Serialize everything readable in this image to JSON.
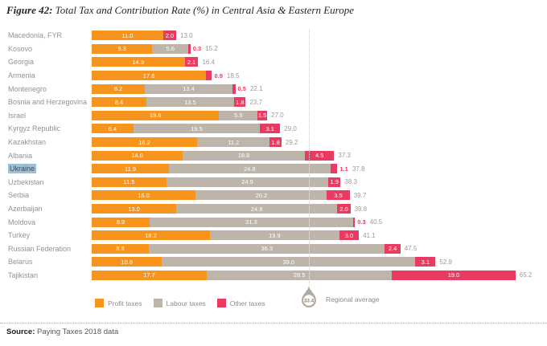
{
  "title": {
    "prefix": "Figure 42:",
    "rest": " Total Tax and Contribution Rate (%) in Central Asia & Eastern Europe"
  },
  "source": {
    "label": "Source:",
    "text": " Paying Taxes 2018 data"
  },
  "regional_average": {
    "value": "33.4",
    "label": "Regional average"
  },
  "legend": [
    {
      "label": "Profit taxes",
      "color_key": "profit"
    },
    {
      "label": "Labour taxes",
      "color_key": "labour"
    },
    {
      "label": "Other taxes",
      "color_key": "other"
    }
  ],
  "colors": {
    "profit": "#f7941e",
    "labour": "#bdb4aa",
    "other": "#e93a5f",
    "title_color": "#26262e",
    "label_gray": "#909396",
    "total_gray": "#9e9a94",
    "legend_text": "#8c8c8c",
    "avg_line": "#c8c8c8",
    "droplet": "#b3aaa0",
    "droplet_text": "#877f75",
    "highlight_bg": "#9dc0d6",
    "highlight_text": "#3c4e5a"
  },
  "chart_data": {
    "type": "bar",
    "orientation": "horizontal",
    "stacked": true,
    "title": "Total Tax and Contribution Rate (%) in Central Asia & Eastern Europe",
    "xlabel": "Total Tax and Contribution Rate (%)",
    "ylabel": "",
    "xlim": [
      0,
      68
    ],
    "grid": false,
    "legend_position": "bottom",
    "regional_average": 33.4,
    "highlighted_category": "Ukraine",
    "categories": [
      "Macedonia, FYR",
      "Kosovo",
      "Georgia",
      "Armenia",
      "Montenegro",
      "Bosnia and Herzegovina",
      "Israel",
      "Kyrgyz Republic",
      "Kazakhstan",
      "Albania",
      "Ukraine",
      "Uzbekistan",
      "Serbia",
      "Azerbaijan",
      "Moldova",
      "Turkey",
      "Russian Federation",
      "Belarus",
      "Tajikistan"
    ],
    "series": [
      {
        "name": "Profit taxes",
        "key": "profit",
        "values": [
          11.0,
          9.3,
          14.3,
          17.6,
          8.2,
          8.4,
          19.6,
          6.4,
          16.2,
          14.0,
          11.9,
          11.5,
          16.0,
          13.0,
          8.9,
          18.2,
          8.8,
          10.8,
          17.7
        ]
      },
      {
        "name": "Labour taxes",
        "key": "labour",
        "values": [
          0,
          5.6,
          0,
          0,
          13.4,
          13.5,
          5.9,
          19.5,
          11.2,
          18.8,
          24.8,
          24.9,
          20.2,
          24.8,
          31.3,
          19.9,
          36.3,
          39.0,
          28.5
        ]
      },
      {
        "name": "Other taxes",
        "key": "other",
        "values": [
          2.0,
          0.3,
          2.1,
          0.9,
          0.5,
          1.8,
          1.5,
          3.1,
          1.8,
          4.5,
          1.1,
          1.9,
          3.5,
          2.0,
          0.3,
          3.0,
          2.4,
          3.1,
          19.0
        ]
      }
    ],
    "totals": [
      13.0,
      15.2,
      16.4,
      18.5,
      22.1,
      23.7,
      27.0,
      29.0,
      29.2,
      37.3,
      37.8,
      38.3,
      39.7,
      39.8,
      40.5,
      41.1,
      47.5,
      52.9,
      65.2
    ]
  }
}
